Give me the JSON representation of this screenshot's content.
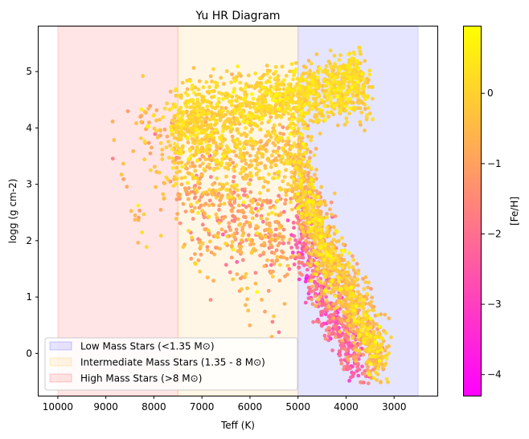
{
  "chart_data": {
    "type": "scatter",
    "title": "Yu HR Diagram",
    "xlabel": "Teff (K)",
    "ylabel": "logg (g cm-2)",
    "xlim": [
      10400,
      2100
    ],
    "ylim": [
      -0.75,
      5.8
    ],
    "x_inverted": true,
    "x_ticks": [
      10000,
      9000,
      8000,
      7000,
      6000,
      5000,
      4000,
      3000
    ],
    "x_tick_labels": [
      "10000",
      "9000",
      "8000",
      "7000",
      "6000",
      "5000",
      "4000",
      "3000"
    ],
    "y_ticks": [
      0,
      1,
      2,
      3,
      4,
      5
    ],
    "y_tick_labels": [
      "0",
      "1",
      "2",
      "3",
      "4",
      "5"
    ],
    "colorbar": {
      "label": "[Fe/H]",
      "range": [
        -4.3,
        0.95
      ],
      "ticks": [
        0,
        -1,
        -2,
        -3,
        -4
      ],
      "tick_labels": [
        "0",
        "−1",
        "−2",
        "−3",
        "−4"
      ],
      "colormap": "spring",
      "colors": [
        "#ff00ff",
        "#ffff00"
      ]
    },
    "regions": [
      {
        "name": "Low Mass Stars (<1.35 M⊙)",
        "x_range": [
          5000,
          2500
        ],
        "color": "#0000ff",
        "alpha": 0.1
      },
      {
        "name": "Intermediate Mass Stars (1.35 - 8 M⊙)",
        "x_range": [
          7500,
          5000
        ],
        "color": "#ffa500",
        "alpha": 0.1
      },
      {
        "name": "High Mass Stars (>8 M⊙)",
        "x_range": [
          10000,
          7500
        ],
        "color": "#ff0000",
        "alpha": 0.1
      }
    ],
    "legend": {
      "position": "lower-left"
    },
    "grid": false,
    "point_groups": [
      {
        "desc": "main sequence band",
        "path": [
          [
            7600,
            4.1
          ],
          [
            7000,
            4.25
          ],
          [
            6000,
            4.4
          ],
          [
            5300,
            4.5
          ],
          [
            4700,
            4.58
          ],
          [
            4100,
            4.65
          ],
          [
            3600,
            4.7
          ]
        ],
        "spread": 0.28,
        "count": 1100,
        "feh_mean": 0.05,
        "feh_sd": 0.3
      },
      {
        "desc": "red giant branch",
        "path": [
          [
            5100,
            3.8
          ],
          [
            4900,
            3.0
          ],
          [
            4700,
            2.5
          ],
          [
            4500,
            2.0
          ],
          [
            4250,
            1.5
          ],
          [
            3950,
            1.0
          ],
          [
            3700,
            0.6
          ],
          [
            3450,
            0.2
          ],
          [
            3250,
            -0.1
          ]
        ],
        "spread": 0.32,
        "count": 1200,
        "feh_mean": -0.35,
        "feh_sd": 0.55
      },
      {
        "desc": "metal-poor giants",
        "path": [
          [
            5000,
            2.3
          ],
          [
            4800,
            1.6
          ],
          [
            4500,
            1.0
          ],
          [
            4200,
            0.5
          ],
          [
            3900,
            0.0
          ],
          [
            3700,
            -0.3
          ]
        ],
        "spread": 0.28,
        "count": 420,
        "feh_mean": -2.3,
        "feh_sd": 0.7
      },
      {
        "desc": "turnoff and subgiants",
        "path": [
          [
            7500,
            3.9
          ],
          [
            6700,
            3.7
          ],
          [
            6000,
            3.6
          ],
          [
            5300,
            3.4
          ]
        ],
        "spread": 0.45,
        "count": 500,
        "feh_mean": -0.2,
        "feh_sd": 0.4
      },
      {
        "desc": "horizontal branch cloud",
        "path": [
          [
            7300,
            2.7
          ],
          [
            6500,
            2.4
          ],
          [
            5800,
            2.2
          ],
          [
            5200,
            2.0
          ]
        ],
        "spread": 0.45,
        "count": 380,
        "feh_mean": -1.0,
        "feh_sd": 0.6
      },
      {
        "desc": "hot stars",
        "path": [
          [
            8300,
            4.2
          ],
          [
            8000,
            3.8
          ],
          [
            7700,
            3.3
          ],
          [
            7400,
            2.9
          ]
        ],
        "spread": 0.35,
        "count": 90,
        "feh_mean": -0.5,
        "feh_sd": 0.5
      },
      {
        "desc": "bright giants",
        "path": [
          [
            4900,
            4.7
          ],
          [
            4400,
            4.95
          ],
          [
            4000,
            5.1
          ],
          [
            3700,
            5.25
          ]
        ],
        "spread": 0.12,
        "count": 70,
        "feh_mean": 0.1,
        "feh_sd": 0.2
      },
      {
        "desc": "scattered outliers",
        "path": [
          [
            8900,
            3.9
          ],
          [
            8500,
            2.9
          ],
          [
            8200,
            1.95
          ],
          [
            6300,
            1.4
          ],
          [
            5900,
            0.8
          ],
          [
            5300,
            0.6
          ],
          [
            7200,
            2.3
          ]
        ],
        "spread": 0.2,
        "count": 45,
        "feh_mean": -0.6,
        "feh_sd": 0.6
      }
    ],
    "seed": 7
  }
}
